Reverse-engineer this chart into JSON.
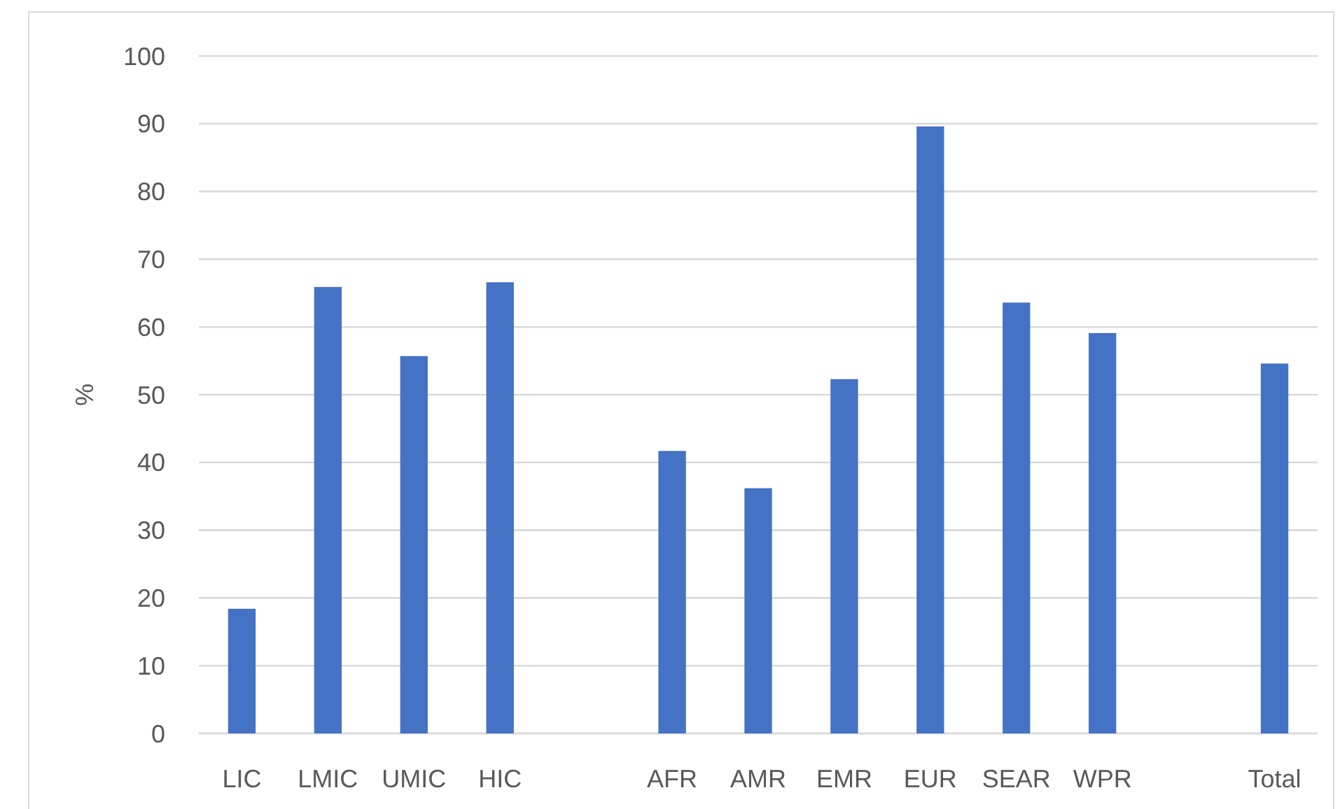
{
  "chart_data": {
    "type": "bar",
    "ylabel": "%",
    "categories": [
      "LIC",
      "LMIC",
      "UMIC",
      "HIC",
      null,
      "AFR",
      "AMR",
      "EMR",
      "EUR",
      "SEAR",
      "WPR",
      null,
      "Total"
    ],
    "values": [
      18.4,
      65.9,
      55.7,
      66.6,
      null,
      41.7,
      36.2,
      52.3,
      89.6,
      63.6,
      59.1,
      null,
      54.6
    ],
    "color": "#4472c4",
    "ylim": [
      0,
      100
    ],
    "yticks": [
      0,
      10,
      20,
      30,
      40,
      50,
      60,
      70,
      80,
      90,
      100
    ],
    "grid": "y"
  }
}
